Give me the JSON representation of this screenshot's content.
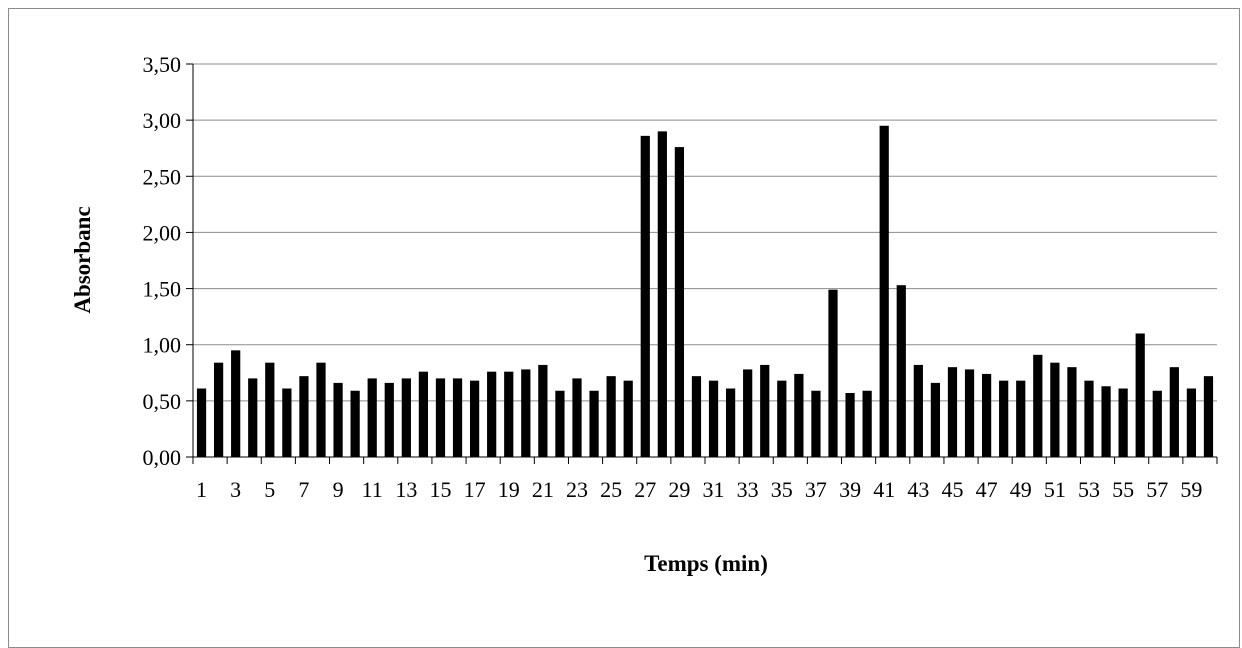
{
  "chart_data": {
    "type": "bar",
    "title": "",
    "xlabel": "Temps (min)",
    "ylabel": "Absorbanc",
    "ylim": [
      0,
      3.5
    ],
    "y_ticks": [
      "0,00",
      "0,50",
      "1,00",
      "1,50",
      "2,00",
      "2,50",
      "3,00",
      "3,50"
    ],
    "grid": true,
    "legend": "none",
    "bar_color": "#000000",
    "categories": [
      "1",
      "2",
      "3",
      "4",
      "5",
      "6",
      "7",
      "8",
      "9",
      "10",
      "11",
      "12",
      "13",
      "14",
      "15",
      "16",
      "17",
      "18",
      "19",
      "20",
      "21",
      "22",
      "23",
      "24",
      "25",
      "26",
      "27",
      "28",
      "29",
      "30",
      "31",
      "32",
      "33",
      "34",
      "35",
      "36",
      "37",
      "38",
      "39",
      "40",
      "41",
      "42",
      "43",
      "44",
      "45",
      "46",
      "47",
      "48",
      "49",
      "50",
      "51",
      "52",
      "53",
      "54",
      "55",
      "56",
      "57",
      "58",
      "59",
      "60"
    ],
    "x_tick_labels_shown": [
      "1",
      "3",
      "5",
      "7",
      "9",
      "11",
      "13",
      "15",
      "17",
      "19",
      "21",
      "23",
      "25",
      "27",
      "29",
      "31",
      "33",
      "35",
      "37",
      "39",
      "41",
      "43",
      "45",
      "47",
      "49",
      "51",
      "53",
      "55",
      "57",
      "59"
    ],
    "values": [
      0.61,
      0.84,
      0.95,
      0.7,
      0.84,
      0.61,
      0.72,
      0.84,
      0.66,
      0.59,
      0.7,
      0.66,
      0.7,
      0.76,
      0.7,
      0.7,
      0.68,
      0.76,
      0.76,
      0.78,
      0.82,
      0.59,
      0.7,
      0.59,
      0.72,
      0.68,
      2.86,
      2.9,
      2.76,
      0.72,
      0.68,
      0.61,
      0.78,
      0.82,
      0.68,
      0.74,
      0.59,
      1.49,
      0.57,
      0.59,
      2.95,
      1.53,
      0.82,
      0.66,
      0.8,
      0.78,
      0.74,
      0.68,
      0.68,
      0.91,
      0.84,
      0.8,
      0.68,
      0.63,
      0.61,
      1.1,
      0.59,
      0.8,
      0.61,
      0.72
    ]
  }
}
